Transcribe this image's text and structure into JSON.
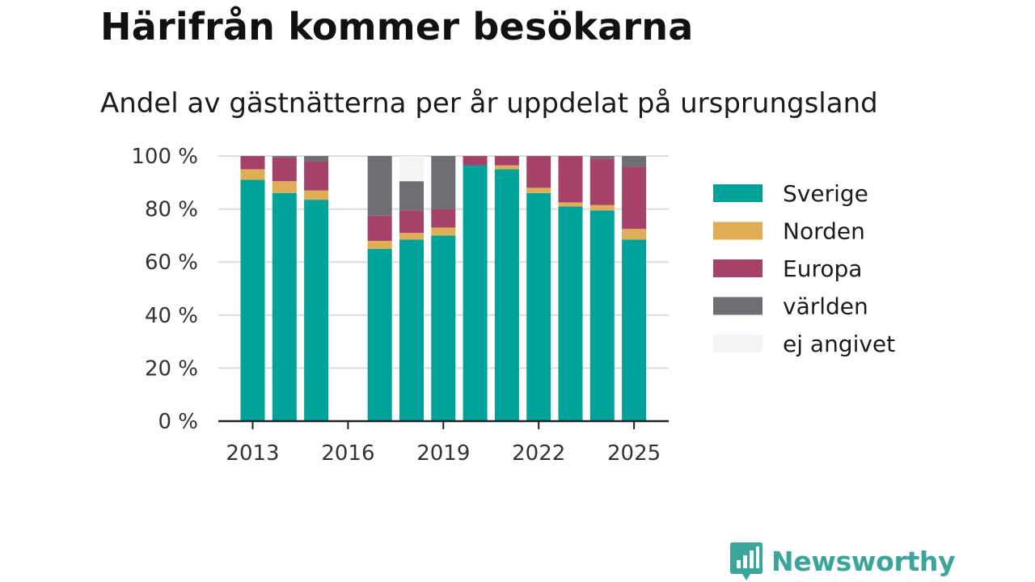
{
  "header": {
    "title": "Härifrån kommer besökarna",
    "subtitle": "Andel av gästnätterna per år uppdelat på ursprungsland"
  },
  "chart_data": {
    "type": "bar",
    "stacked": true,
    "x": [
      2013,
      2014,
      2015,
      2016,
      2017,
      2018,
      2019,
      2020,
      2021,
      2022,
      2023,
      2024,
      2025
    ],
    "x_tick_labels": [
      "2013",
      "2016",
      "2019",
      "2022",
      "2025"
    ],
    "y_tick_labels": [
      "0 %",
      "20 %",
      "40 %",
      "60 %",
      "80 %",
      "100 %"
    ],
    "ylim": [
      0,
      100
    ],
    "grid": true,
    "legend_position": "right",
    "series": [
      {
        "name": "Sverige",
        "color": "#00a29a",
        "values": [
          91,
          86,
          83.5,
          null,
          65,
          68.5,
          70,
          96.5,
          95,
          86,
          81,
          79.5,
          68.5
        ]
      },
      {
        "name": "Norden",
        "color": "#dfae56",
        "values": [
          4,
          4.5,
          3.5,
          null,
          3,
          2.5,
          3,
          0,
          1.5,
          2,
          1.5,
          2,
          4
        ]
      },
      {
        "name": "Europa",
        "color": "#a6426a",
        "values": [
          5,
          9,
          11,
          null,
          9.5,
          8.5,
          7,
          3.5,
          3.5,
          12,
          17.5,
          17.5,
          23.5
        ]
      },
      {
        "name": "världen",
        "color": "#6e6e74",
        "values": [
          0,
          0.5,
          2,
          null,
          22.5,
          11,
          20,
          0,
          0,
          0,
          0,
          1,
          4
        ]
      },
      {
        "name": "ej angivet",
        "color": "#f4f4f2",
        "values": [
          0,
          0,
          0,
          null,
          0,
          9.5,
          0,
          0,
          0,
          0,
          0,
          0,
          0
        ]
      }
    ]
  },
  "brand": {
    "name": "Newsworthy",
    "color": "#3aa59b",
    "icon": "newsworthy-logo-icon"
  }
}
